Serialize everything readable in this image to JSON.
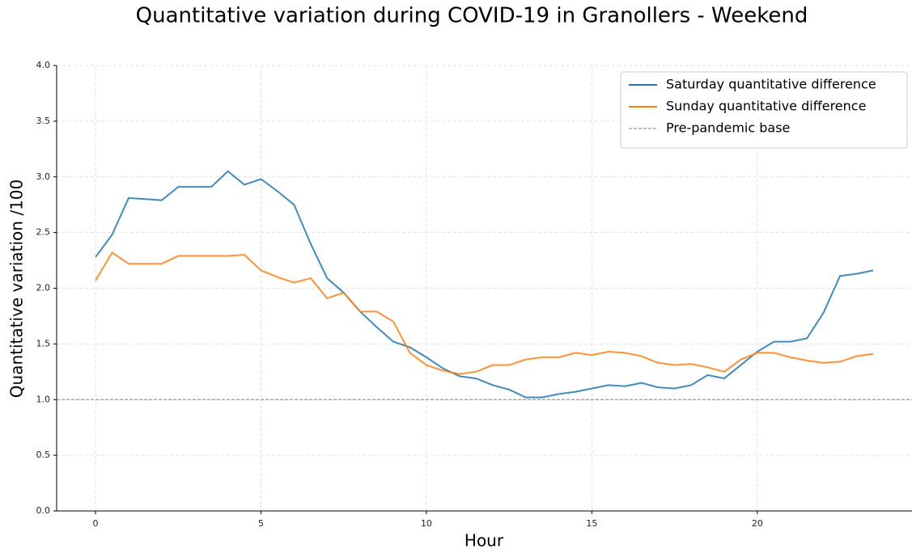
{
  "chart_data": {
    "type": "line",
    "title": "Quantitative variation during COVID-19 in Granollers - Weekend",
    "x_label": "Hour",
    "y_label": "Quantitative variation /100",
    "x": [
      0,
      0.5,
      1,
      1.5,
      2,
      2.5,
      3,
      3.5,
      4,
      4.5,
      5,
      5.5,
      6,
      6.5,
      7,
      7.5,
      8,
      8.5,
      9,
      9.5,
      10,
      10.5,
      11,
      11.5,
      12,
      12.5,
      13,
      13.5,
      14,
      14.5,
      15,
      15.5,
      16,
      16.5,
      17,
      17.5,
      18,
      18.5,
      19,
      19.5,
      20,
      20.5,
      21,
      21.5,
      22,
      22.5,
      23,
      23.5
    ],
    "series": [
      {
        "name": "Saturday quantitative difference",
        "color": "#1f77b4",
        "values": [
          2.28,
          2.48,
          2.81,
          2.8,
          2.79,
          2.91,
          2.91,
          2.91,
          3.05,
          2.93,
          2.98,
          2.87,
          2.75,
          2.4,
          2.09,
          1.96,
          1.79,
          1.65,
          1.52,
          1.47,
          1.38,
          1.28,
          1.21,
          1.19,
          1.13,
          1.09,
          1.02,
          1.02,
          1.05,
          1.07,
          1.1,
          1.13,
          1.12,
          1.15,
          1.11,
          1.1,
          1.13,
          1.22,
          1.19,
          1.31,
          1.43,
          1.52,
          1.52,
          1.55,
          1.78,
          2.11,
          2.13,
          2.16
        ]
      },
      {
        "name": "Sunday quantitative difference",
        "color": "#ff7f0e",
        "values": [
          2.07,
          2.32,
          2.22,
          2.22,
          2.22,
          2.29,
          2.29,
          2.29,
          2.29,
          2.3,
          2.16,
          2.1,
          2.05,
          2.09,
          1.91,
          1.96,
          1.79,
          1.79,
          1.7,
          1.42,
          1.31,
          1.26,
          1.23,
          1.25,
          1.31,
          1.31,
          1.36,
          1.38,
          1.38,
          1.42,
          1.4,
          1.43,
          1.42,
          1.39,
          1.33,
          1.31,
          1.32,
          1.29,
          1.25,
          1.36,
          1.42,
          1.42,
          1.38,
          1.35,
          1.33,
          1.34,
          1.39,
          1.41
        ]
      }
    ],
    "reference_line": {
      "name": "Pre-pandemic base",
      "value": 1,
      "color": "#808080"
    },
    "xlim": [
      -1.175,
      24.675
    ],
    "ylim": [
      0,
      4
    ],
    "xticks": [
      0,
      5,
      10,
      15,
      20
    ],
    "yticks": [
      {
        "value": 0,
        "label": "0.0"
      },
      {
        "value": 0.5,
        "label": "0.5"
      },
      {
        "value": 1,
        "label": "1.0"
      },
      {
        "value": 1.5,
        "label": "1.5"
      },
      {
        "value": 2,
        "label": "2.0"
      },
      {
        "value": 2.5,
        "label": "2.5"
      },
      {
        "value": 3,
        "label": "3.0"
      },
      {
        "value": 3.5,
        "label": "3.5"
      },
      {
        "value": 4,
        "label": "4.0"
      }
    ],
    "grid": true,
    "legend": "upper right"
  }
}
